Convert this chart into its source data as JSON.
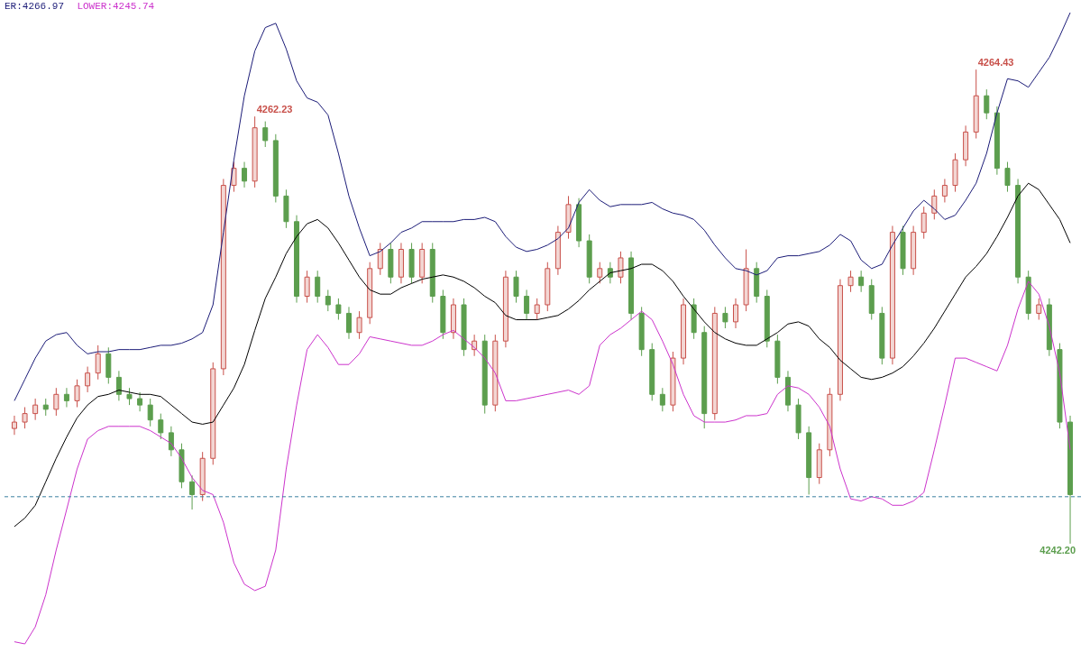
{
  "chart_data": {
    "type": "candlestick",
    "categories": [
      null,
      null,
      null,
      null,
      null,
      null,
      null,
      null,
      null,
      null,
      null,
      null,
      null,
      null,
      null,
      null,
      null,
      null,
      null,
      null,
      null,
      null,
      null,
      null,
      null,
      null,
      null,
      null,
      null,
      null,
      null,
      null,
      null,
      null,
      null,
      null,
      null,
      null,
      null,
      null,
      null,
      null,
      null,
      null,
      null,
      null,
      null,
      null,
      null,
      null,
      null,
      null,
      null,
      null,
      null,
      null,
      null,
      null,
      null,
      null,
      null,
      null,
      null,
      null,
      null,
      null,
      null,
      null,
      null,
      null,
      null,
      null,
      null,
      null,
      null,
      null,
      null,
      null,
      null,
      null,
      null,
      null,
      null,
      null,
      null,
      null,
      null,
      null,
      null,
      null,
      null,
      null,
      null,
      null,
      null,
      null,
      null,
      null,
      null,
      null,
      null,
      null
    ],
    "ohlc": [
      [
        4247.6,
        4248.2,
        4247.3,
        4247.9
      ],
      [
        4247.9,
        4248.6,
        4247.6,
        4248.3
      ],
      [
        4248.3,
        4249.0,
        4248.0,
        4248.7
      ],
      [
        4248.7,
        4249.0,
        4248.2,
        4248.5
      ],
      [
        4248.5,
        4249.5,
        4248.2,
        4249.2
      ],
      [
        4249.2,
        4249.5,
        4248.6,
        4248.9
      ],
      [
        4248.9,
        4249.9,
        4248.6,
        4249.6
      ],
      [
        4249.6,
        4250.5,
        4249.3,
        4250.2
      ],
      [
        4250.2,
        4251.5,
        4249.9,
        4251.1
      ],
      [
        4251.1,
        4251.4,
        4249.7,
        4250.0
      ],
      [
        4250.0,
        4250.3,
        4248.9,
        4249.2
      ],
      [
        4249.2,
        4249.5,
        4248.7,
        4249.0
      ],
      [
        4249.0,
        4249.3,
        4248.4,
        4248.7
      ],
      [
        4248.7,
        4249.0,
        4247.7,
        4248.0
      ],
      [
        4248.0,
        4248.3,
        4247.1,
        4247.4
      ],
      [
        4247.4,
        4247.7,
        4246.3,
        4246.6
      ],
      [
        4246.6,
        4246.9,
        4244.8,
        4245.1
      ],
      [
        4245.1,
        4245.4,
        4243.8,
        4244.5
      ],
      [
        4244.5,
        4246.5,
        4244.2,
        4246.2
      ],
      [
        4246.2,
        4250.7,
        4245.9,
        4250.4
      ],
      [
        4250.4,
        4259.3,
        4250.1,
        4259.0
      ],
      [
        4259.0,
        4260.1,
        4258.7,
        4259.8
      ],
      [
        4259.8,
        4260.1,
        4258.9,
        4259.2
      ],
      [
        4259.2,
        4262.23,
        4258.9,
        4261.7
      ],
      [
        4261.7,
        4262.0,
        4260.8,
        4261.1
      ],
      [
        4261.1,
        4261.4,
        4258.2,
        4258.5
      ],
      [
        4258.5,
        4258.8,
        4257.0,
        4257.3
      ],
      [
        4257.3,
        4257.6,
        4253.5,
        4253.8
      ],
      [
        4253.8,
        4255.0,
        4253.5,
        4254.7
      ],
      [
        4254.7,
        4255.0,
        4253.5,
        4253.8
      ],
      [
        4253.8,
        4254.1,
        4253.1,
        4253.4
      ],
      [
        4253.4,
        4253.7,
        4252.7,
        4253.0
      ],
      [
        4253.0,
        4253.3,
        4251.8,
        4252.1
      ],
      [
        4252.1,
        4253.1,
        4251.8,
        4252.8
      ],
      [
        4252.8,
        4255.4,
        4252.5,
        4255.1
      ],
      [
        4255.1,
        4256.3,
        4254.8,
        4256.0
      ],
      [
        4256.0,
        4256.3,
        4254.4,
        4254.7
      ],
      [
        4254.7,
        4256.3,
        4254.4,
        4256.0
      ],
      [
        4256.0,
        4256.3,
        4254.4,
        4254.7
      ],
      [
        4254.7,
        4256.3,
        4254.4,
        4256.0
      ],
      [
        4256.0,
        4256.3,
        4253.5,
        4253.8
      ],
      [
        4253.8,
        4254.1,
        4251.8,
        4252.1
      ],
      [
        4252.1,
        4253.7,
        4251.8,
        4253.4
      ],
      [
        4253.4,
        4253.7,
        4251.0,
        4251.3
      ],
      [
        4251.3,
        4252.0,
        4251.0,
        4251.7
      ],
      [
        4251.7,
        4252.0,
        4248.3,
        4248.7
      ],
      [
        4248.7,
        4252.0,
        4248.4,
        4251.7
      ],
      [
        4251.7,
        4255.0,
        4251.4,
        4254.7
      ],
      [
        4254.7,
        4255.0,
        4253.5,
        4253.8
      ],
      [
        4253.8,
        4254.1,
        4252.7,
        4253.0
      ],
      [
        4253.0,
        4253.7,
        4252.7,
        4253.4
      ],
      [
        4253.4,
        4255.4,
        4253.1,
        4255.1
      ],
      [
        4255.1,
        4257.1,
        4254.8,
        4256.8
      ],
      [
        4256.8,
        4258.5,
        4256.5,
        4258.1
      ],
      [
        4258.1,
        4258.4,
        4256.1,
        4256.4
      ],
      [
        4256.4,
        4256.7,
        4254.4,
        4254.7
      ],
      [
        4254.7,
        4255.4,
        4254.4,
        4255.1
      ],
      [
        4255.1,
        4255.4,
        4254.4,
        4254.7
      ],
      [
        4254.7,
        4255.9,
        4254.4,
        4255.6
      ],
      [
        4255.6,
        4255.9,
        4252.7,
        4253.0
      ],
      [
        4253.0,
        4253.3,
        4251.0,
        4251.3
      ],
      [
        4251.3,
        4251.6,
        4248.9,
        4249.2
      ],
      [
        4249.2,
        4249.5,
        4248.4,
        4248.7
      ],
      [
        4248.7,
        4251.2,
        4248.4,
        4250.9
      ],
      [
        4250.9,
        4253.7,
        4250.6,
        4253.4
      ],
      [
        4253.4,
        4253.7,
        4251.8,
        4252.1
      ],
      [
        4252.1,
        4252.4,
        4247.6,
        4248.3
      ],
      [
        4248.3,
        4253.3,
        4248.0,
        4253.0
      ],
      [
        4253.0,
        4253.3,
        4252.3,
        4252.6
      ],
      [
        4252.6,
        4253.7,
        4252.3,
        4253.4
      ],
      [
        4253.4,
        4256.0,
        4253.1,
        4255.1
      ],
      [
        4255.1,
        4255.4,
        4253.5,
        4253.8
      ],
      [
        4253.8,
        4254.1,
        4251.4,
        4251.7
      ],
      [
        4251.7,
        4252.0,
        4249.7,
        4250.0
      ],
      [
        4250.0,
        4250.3,
        4248.4,
        4248.7
      ],
      [
        4248.7,
        4249.0,
        4247.1,
        4247.4
      ],
      [
        4247.4,
        4247.7,
        4244.5,
        4245.3
      ],
      [
        4245.3,
        4246.9,
        4245.0,
        4246.6
      ],
      [
        4246.6,
        4249.5,
        4246.3,
        4249.2
      ],
      [
        4249.2,
        4254.6,
        4248.9,
        4254.3
      ],
      [
        4254.3,
        4255.0,
        4254.0,
        4254.7
      ],
      [
        4254.7,
        4255.0,
        4254.0,
        4254.3
      ],
      [
        4254.3,
        4254.6,
        4252.7,
        4253.0
      ],
      [
        4253.0,
        4253.3,
        4250.6,
        4250.9
      ],
      [
        4250.9,
        4257.1,
        4250.6,
        4256.8
      ],
      [
        4256.8,
        4257.1,
        4254.8,
        4255.1
      ],
      [
        4255.1,
        4257.1,
        4254.8,
        4256.8
      ],
      [
        4256.8,
        4258.0,
        4256.5,
        4257.7
      ],
      [
        4257.7,
        4258.8,
        4257.4,
        4258.5
      ],
      [
        4258.5,
        4259.3,
        4258.2,
        4259.0
      ],
      [
        4259.0,
        4260.5,
        4258.7,
        4260.2
      ],
      [
        4260.2,
        4261.8,
        4259.9,
        4261.5
      ],
      [
        4261.5,
        4264.43,
        4261.2,
        4263.2
      ],
      [
        4263.2,
        4263.5,
        4262.1,
        4262.4
      ],
      [
        4262.4,
        4262.7,
        4259.5,
        4259.8
      ],
      [
        4259.8,
        4260.1,
        4258.7,
        4259.0
      ],
      [
        4259.0,
        4259.3,
        4254.4,
        4254.7
      ],
      [
        4254.7,
        4255.0,
        4252.7,
        4253.0
      ],
      [
        4253.0,
        4253.7,
        4252.7,
        4253.4
      ],
      [
        4253.4,
        4253.7,
        4251.0,
        4251.3
      ],
      [
        4251.3,
        4251.6,
        4247.6,
        4247.9
      ],
      [
        4247.9,
        4248.2,
        4242.2,
        4244.5
      ]
    ],
    "series": [
      {
        "type": "line",
        "color": "#1c1c78",
        "values": [
          4248.9,
          4249.9,
          4250.9,
          4251.7,
          4252.0,
          4252.1,
          4251.5,
          4251.1,
          4251.2,
          4251.2,
          4251.3,
          4251.3,
          4251.3,
          4251.4,
          4251.5,
          4251.5,
          4251.6,
          4251.8,
          4252.1,
          4253.4,
          4256.8,
          4260.2,
          4263.2,
          4265.3,
          4266.4,
          4266.6,
          4265.4,
          4263.9,
          4263.1,
          4262.9,
          4262.3,
          4260.5,
          4258.5,
          4257.0,
          4255.7,
          4255.9,
          4256.3,
          4256.8,
          4257.0,
          4257.3,
          4257.3,
          4257.3,
          4257.3,
          4257.4,
          4257.4,
          4257.5,
          4257.3,
          4256.6,
          4256.1,
          4255.9,
          4256.0,
          4256.2,
          4256.5,
          4257.0,
          4258.2,
          4258.8,
          4258.3,
          4258.0,
          4258.1,
          4258.1,
          4258.1,
          4258.2,
          4257.9,
          4257.7,
          4257.6,
          4257.4,
          4256.9,
          4256.2,
          4255.6,
          4255.1,
          4255.0,
          4254.8,
          4255.0,
          4255.6,
          4255.7,
          4255.7,
          4255.8,
          4255.9,
          4256.2,
          4256.7,
          4256.4,
          4255.5,
          4255.1,
          4255.3,
          4256.2,
          4257.0,
          4257.8,
          4258.3,
          4257.9,
          4257.4,
          4257.6,
          4258.3,
          4259.1,
          4260.5,
          4262.4,
          4264.0,
          4263.9,
          4263.6,
          4264.3,
          4265.0,
          4266.0,
          4267.1
        ]
      },
      {
        "type": "line",
        "color": "#000000",
        "values": [
          4243.0,
          4243.4,
          4244.0,
          4245.1,
          4246.2,
          4247.2,
          4248.1,
          4248.7,
          4249.1,
          4249.2,
          4249.4,
          4249.3,
          4249.2,
          4249.2,
          4249.1,
          4248.7,
          4248.3,
          4247.9,
          4247.8,
          4247.9,
          4248.7,
          4249.5,
          4250.6,
          4252.2,
          4253.7,
          4254.7,
          4255.8,
          4256.6,
          4257.2,
          4257.4,
          4257.0,
          4256.3,
          4255.5,
          4254.7,
          4254.1,
          4253.9,
          4253.9,
          4254.2,
          4254.4,
          4254.6,
          4254.7,
          4254.8,
          4254.7,
          4254.5,
          4254.2,
          4253.8,
          4253.5,
          4252.9,
          4252.7,
          4252.7,
          4252.7,
          4252.8,
          4252.9,
          4253.2,
          4253.6,
          4254.1,
          4254.5,
          4254.9,
          4255.0,
          4255.1,
          4255.3,
          4255.3,
          4255.0,
          4254.5,
          4253.8,
          4253.2,
          4252.6,
          4252.1,
          4251.8,
          4251.6,
          4251.5,
          4251.5,
          4251.8,
          4252.1,
          4252.5,
          4252.6,
          4252.4,
          4251.8,
          4251.4,
          4250.8,
          4250.4,
          4250.0,
          4249.9,
          4250.0,
          4250.2,
          4250.5,
          4251.0,
          4251.6,
          4252.3,
          4253.1,
          4253.9,
          4254.7,
          4255.2,
          4255.8,
          4256.6,
          4257.5,
          4258.5,
          4259.1,
          4258.8,
          4258.1,
          4257.4,
          4256.3
        ]
      },
      {
        "type": "line",
        "color": "#cc33cc",
        "values": [
          4237.6,
          4237.5,
          4238.3,
          4239.8,
          4241.9,
          4243.8,
          4245.7,
          4247.1,
          4247.5,
          4247.7,
          4247.7,
          4247.7,
          4247.7,
          4247.5,
          4247.2,
          4246.9,
          4246.2,
          4245.3,
          4244.7,
          4244.5,
          4243.2,
          4241.3,
          4240.3,
          4240.0,
          4240.2,
          4241.9,
          4245.7,
          4248.7,
          4251.3,
          4252.0,
          4251.4,
          4250.6,
          4250.6,
          4251.1,
          4251.9,
          4251.8,
          4251.7,
          4251.6,
          4251.5,
          4251.5,
          4251.7,
          4252.0,
          4252.2,
          4251.8,
          4251.4,
          4250.9,
          4250.2,
          4248.9,
          4248.9,
          4249.0,
          4249.1,
          4249.2,
          4249.3,
          4249.4,
          4249.2,
          4249.6,
          4251.5,
          4252.0,
          4252.3,
          4252.7,
          4253.1,
          4252.7,
          4251.7,
          4250.6,
          4249.2,
          4248.2,
          4247.9,
          4247.9,
          4247.9,
          4248.0,
          4248.2,
          4248.2,
          4248.3,
          4249.2,
          4249.6,
          4249.5,
          4249.2,
          4248.6,
          4247.7,
          4245.7,
          4244.3,
          4244.2,
          4244.4,
          4244.3,
          4244.0,
          4244.0,
          4244.2,
          4244.6,
          4246.6,
          4248.7,
          4250.9,
          4250.9,
          4250.7,
          4250.5,
          4250.3,
          4251.5,
          4253.2,
          4254.5,
          4253.9,
          4252.4,
          4250.2,
          4246.6
        ]
      }
    ],
    "ref_lines": [
      {
        "axis": "y",
        "value": 4244.4,
        "color": "#3a7fa0",
        "line_style": "dashed"
      }
    ],
    "annotations": [
      "ER:4266.97",
      "LOWER:4245.74",
      "4262.23",
      "4264.43",
      "4242.20"
    ],
    "marker": "none"
  }
}
